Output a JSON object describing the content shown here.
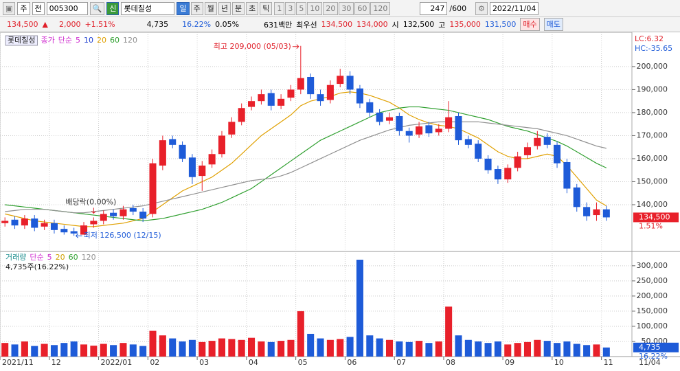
{
  "toolbar": {
    "market": "주",
    "scope": "전",
    "code": "005300",
    "credit": "신",
    "name": "롯데칠성",
    "periods": [
      "일",
      "주",
      "월",
      "년",
      "분",
      "초",
      "틱"
    ],
    "intervals": [
      "1",
      "3",
      "5",
      "10",
      "20",
      "30",
      "60",
      "120"
    ],
    "count": "247",
    "max": "/600",
    "date": "2022/11/04"
  },
  "quote": {
    "price": "134,500",
    "arrow": "▲",
    "change": "2,000",
    "change_pct": "+1.51%",
    "volume": "4,735",
    "turnover": "16.22%",
    "ratio": "0.05%",
    "amount": "631백만",
    "best_label": "최우선",
    "ask": "134,500",
    "bid": "134,000",
    "open_label": "시",
    "open": "132,500",
    "high_label": "고",
    "high": "135,000",
    "low": "131,500",
    "buy": "매수",
    "sell": "매도"
  },
  "chart_data": {
    "type": "candlestick",
    "title": "롯데칠성",
    "price_label": "종가",
    "ma_label": "단순",
    "categories": [
      "2021/11",
      null,
      null,
      null,
      null,
      "12",
      null,
      null,
      null,
      null,
      "2022/01",
      null,
      null,
      null,
      null,
      "02",
      null,
      null,
      null,
      null,
      "03",
      null,
      null,
      null,
      null,
      "04",
      null,
      null,
      null,
      null,
      "05",
      null,
      null,
      null,
      null,
      "06",
      null,
      null,
      null,
      null,
      "07",
      null,
      null,
      null,
      null,
      "08",
      null,
      null,
      null,
      null,
      null,
      "09",
      null,
      null,
      null,
      null,
      "10",
      null,
      null,
      null,
      null,
      "11"
    ],
    "last_date": "11/04",
    "open": [
      132000,
      133500,
      131000,
      134000,
      130500,
      132000,
      129500,
      128500,
      127000,
      131500,
      133000,
      136500,
      135000,
      138500,
      137000,
      136000,
      157000,
      168500,
      166000,
      160500,
      152500,
      157500,
      162000,
      170500,
      176000,
      182500,
      185000,
      188500,
      183000,
      186500,
      190000,
      195500,
      188000,
      185500,
      192500,
      196000,
      190500,
      184500,
      180000,
      176500,
      178500,
      172000,
      170500,
      174500,
      171500,
      173000,
      178500,
      168500,
      166500,
      160000,
      155500,
      151000,
      156000,
      161500,
      165500,
      169500,
      166000,
      158500,
      147500,
      139000,
      135500,
      138000
    ],
    "high": [
      134500,
      135000,
      135500,
      135500,
      133500,
      133500,
      131000,
      130000,
      132500,
      134500,
      137500,
      138000,
      139500,
      140000,
      138500,
      160000,
      170000,
      170000,
      167500,
      162000,
      159000,
      164000,
      172000,
      178000,
      184000,
      187000,
      190000,
      190000,
      188000,
      192000,
      209000,
      197000,
      190000,
      194000,
      199000,
      198000,
      192000,
      186000,
      181500,
      180000,
      180000,
      173500,
      176000,
      176000,
      175000,
      185000,
      180000,
      170000,
      168000,
      161500,
      157000,
      157500,
      163000,
      167000,
      172000,
      171000,
      167500,
      160000,
      149000,
      141000,
      141000,
      139500
    ],
    "low": [
      130500,
      129500,
      129500,
      128500,
      129000,
      127500,
      127000,
      126500,
      127000,
      130000,
      131500,
      133500,
      133500,
      135500,
      132500,
      134500,
      155000,
      164500,
      158500,
      149000,
      146000,
      156000,
      160500,
      169000,
      174500,
      181000,
      183500,
      181000,
      181500,
      185000,
      188000,
      186000,
      183000,
      184000,
      191000,
      188000,
      182000,
      178000,
      174500,
      175000,
      170000,
      167000,
      169000,
      169500,
      170000,
      171500,
      166000,
      164500,
      158500,
      153500,
      149000,
      149500,
      154500,
      160000,
      164000,
      164500,
      156000,
      145000,
      137000,
      133000,
      133000,
      133000
    ],
    "close": [
      133000,
      131000,
      134000,
      130000,
      132000,
      129000,
      128000,
      127500,
      131000,
      133000,
      136000,
      135000,
      138000,
      137000,
      134000,
      158000,
      168000,
      166000,
      160000,
      152000,
      157000,
      162000,
      170000,
      176000,
      182000,
      185000,
      188000,
      183000,
      186000,
      190000,
      195000,
      188000,
      185000,
      192000,
      196000,
      190000,
      184000,
      180000,
      176000,
      178000,
      172000,
      170000,
      174000,
      171000,
      173000,
      178000,
      168000,
      166000,
      160000,
      155000,
      151000,
      156000,
      161000,
      165000,
      169000,
      166000,
      158000,
      147000,
      139000,
      135000,
      138000,
      134500
    ],
    "up_color": "#e8202a",
    "down_color": "#1e5bd8",
    "ma": [
      {
        "name": "5",
        "color": "#d030d0"
      },
      {
        "name": "10",
        "color": "#2040d0"
      },
      {
        "name": "20",
        "color": "#e0a000",
        "values": [
          136000,
          135000,
          134000,
          133000,
          132500,
          132000,
          131500,
          131000,
          130500,
          130500,
          131000,
          131500,
          132000,
          133000,
          134000,
          137000,
          140000,
          143000,
          146000,
          148000,
          150000,
          152000,
          155000,
          158000,
          162000,
          166000,
          170000,
          173000,
          176000,
          179000,
          183000,
          185000,
          186000,
          187000,
          188500,
          189000,
          188500,
          187500,
          186000,
          184500,
          182000,
          179000,
          177000,
          175500,
          174500,
          174000,
          173000,
          171000,
          169000,
          166000,
          163000,
          161000,
          160000,
          160000,
          161000,
          162000,
          161000,
          157000,
          152000,
          147000,
          142000,
          139500
        ]
      },
      {
        "name": "60",
        "color": "#30a030",
        "values": [
          140000,
          139500,
          139000,
          138500,
          138000,
          137500,
          137000,
          136500,
          136000,
          135500,
          135000,
          134500,
          134000,
          133500,
          133000,
          133500,
          134000,
          135000,
          136000,
          137000,
          138000,
          139500,
          141000,
          143000,
          145000,
          147000,
          150000,
          153000,
          156000,
          159000,
          162000,
          165000,
          168000,
          170000,
          172000,
          174000,
          176000,
          178000,
          180000,
          181000,
          182000,
          182500,
          182500,
          182000,
          181500,
          181000,
          180000,
          179000,
          178000,
          177000,
          175500,
          174000,
          173000,
          172000,
          170500,
          169000,
          167500,
          165500,
          163000,
          160500,
          158000,
          156000
        ]
      },
      {
        "name": "120",
        "color": "#909090",
        "values": [
          137000,
          137500,
          138000,
          138000,
          138000,
          137500,
          137000,
          136500,
          136500,
          137000,
          137500,
          138000,
          138500,
          139000,
          139500,
          140500,
          141500,
          142500,
          143500,
          144500,
          145500,
          146500,
          147500,
          148500,
          149500,
          150500,
          151000,
          151500,
          152500,
          154000,
          156000,
          158000,
          160000,
          162000,
          164000,
          166000,
          168000,
          169500,
          171000,
          172500,
          173500,
          174500,
          175000,
          175500,
          176000,
          176000,
          176000,
          176000,
          176000,
          175500,
          175000,
          174500,
          174000,
          173500,
          173000,
          172000,
          171000,
          170000,
          168500,
          167000,
          165500,
          164500
        ]
      }
    ],
    "ylim": [
      120000,
      214000
    ],
    "yticks": [
      {
        "value": 140000,
        "label": "140,000"
      },
      {
        "value": 150000,
        "label": "150,000"
      },
      {
        "value": 160000,
        "label": "160,000"
      },
      {
        "value": 170000,
        "label": "170,000"
      },
      {
        "value": 180000,
        "label": "180,000"
      },
      {
        "value": 190000,
        "label": "190,000"
      },
      {
        "value": 200000,
        "label": "200,000"
      }
    ],
    "grid": true,
    "annotations": {
      "high": "최고 209,000 (05/03)",
      "low": "최저 126,500 (12/15)",
      "dividend": "배당락(0.00%)"
    },
    "right_labels": {
      "lc": "LC:6.32",
      "hc": "HC:-35.65",
      "last": "134,500",
      "last_pct": "1.51%"
    },
    "volume": {
      "title": "거래량",
      "ma_label": "단순",
      "summary": "4,735주(16.22%)",
      "values": [
        45000,
        40000,
        50000,
        35000,
        42000,
        38000,
        45000,
        50000,
        40000,
        36000,
        42000,
        38000,
        45000,
        40000,
        35000,
        85000,
        70000,
        60000,
        50000,
        55000,
        48000,
        52000,
        60000,
        58000,
        55000,
        62000,
        50000,
        48000,
        52000,
        55000,
        150000,
        75000,
        60000,
        55000,
        58000,
        65000,
        320000,
        70000,
        60000,
        55000,
        50000,
        48000,
        52000,
        45000,
        50000,
        165000,
        70000,
        55000,
        50000,
        45000,
        50000,
        40000,
        45000,
        48000,
        55000,
        52000,
        45000,
        50000,
        42000,
        38000,
        40000,
        30000
      ],
      "ylim": [
        0,
        345000
      ],
      "yticks": [
        {
          "value": 50000,
          "label": "50,000"
        },
        {
          "value": 100000,
          "label": "100,000"
        },
        {
          "value": 150000,
          "label": "150,000"
        },
        {
          "value": 200000,
          "label": "200,000"
        },
        {
          "value": 250000,
          "label": "250,000"
        },
        {
          "value": 300000,
          "label": "300,000"
        }
      ],
      "ma": [
        {
          "name": "5",
          "color": "#d030d0"
        },
        {
          "name": "20",
          "color": "#d0a000"
        },
        {
          "name": "60",
          "color": "#30a030"
        },
        {
          "name": "120",
          "color": "#909090"
        }
      ],
      "last": "4,735",
      "last_pct": "16.22%"
    }
  }
}
